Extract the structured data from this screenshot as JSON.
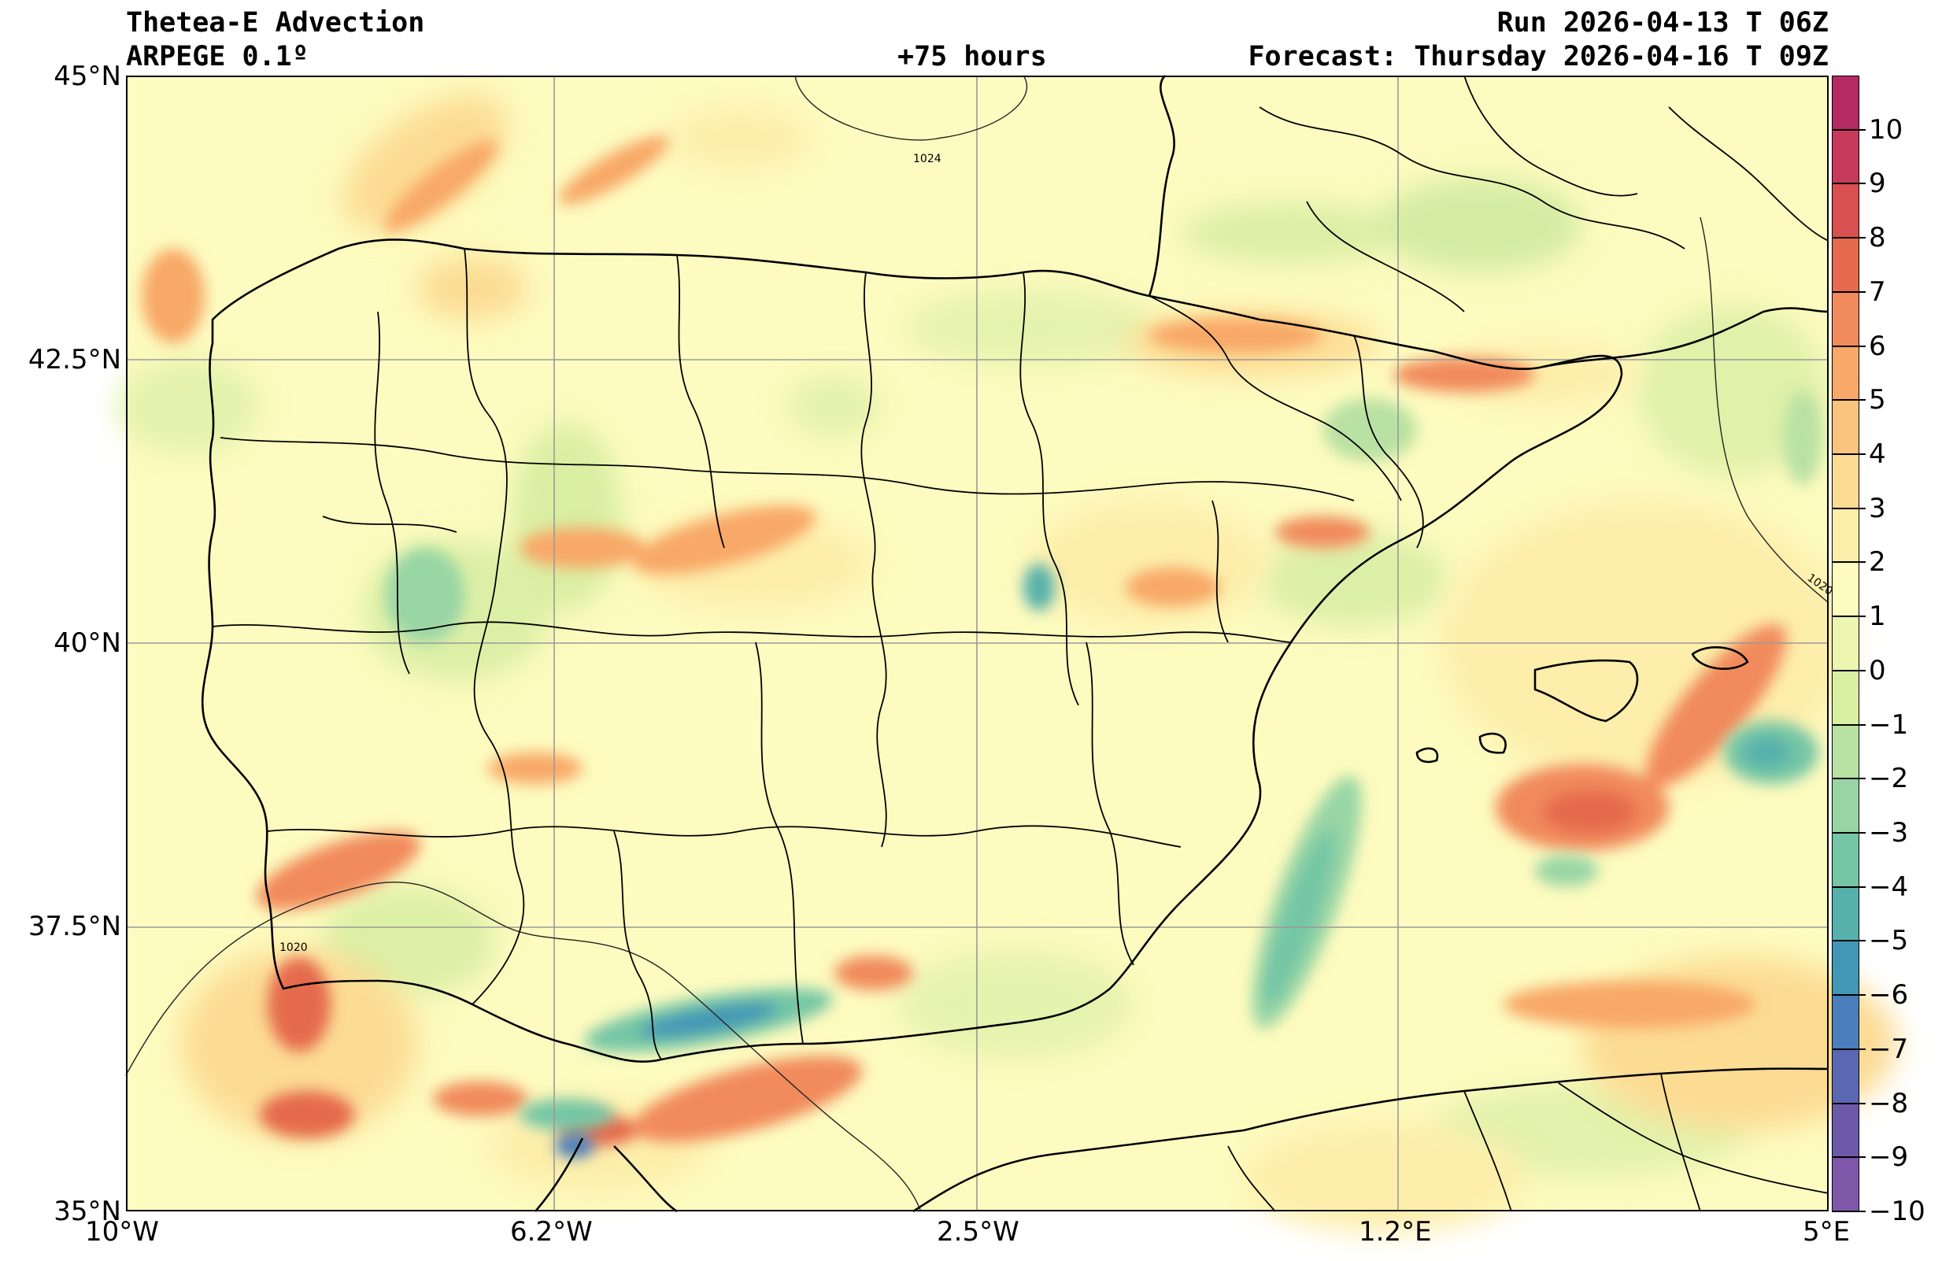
{
  "header": {
    "title": "Thetea-E Advection",
    "model": "ARPEGE 0.1º",
    "lead_time": "+75 hours",
    "run": "Run 2026-04-13 T 06Z",
    "forecast": "Forecast: Thursday 2026-04-16 T 09Z"
  },
  "map": {
    "region": "Iberian Peninsula",
    "extent": {
      "lon_min": -10,
      "lon_max": 5,
      "lat_min": 35,
      "lat_max": 45
    },
    "lat_labels": [
      "45°N",
      "42.5°N",
      "40°N",
      "37.5°N",
      "35°N"
    ],
    "lon_labels": [
      "10°W",
      "6.2°W",
      "2.5°W",
      "1.2°E",
      "5°E"
    ],
    "isobar_labels": [
      "1024",
      "1020",
      "1020"
    ],
    "background_color": "#fdfbbf",
    "gridline_color": "#9a9a9a"
  },
  "colorbar": {
    "tick_labels": [
      "10",
      "9",
      "8",
      "7",
      "6",
      "5",
      "4",
      "3",
      "2",
      "1",
      "0",
      "−1",
      "−2",
      "−3",
      "−4",
      "−5",
      "−6",
      "−7",
      "−8",
      "−9",
      "−10"
    ],
    "colors": [
      "#b42a63",
      "#c83a5c",
      "#d8504f",
      "#e56a4e",
      "#f18a5c",
      "#f8a868",
      "#fbc47e",
      "#fcdb93",
      "#fdeeab",
      "#fdfbbf",
      "#edf6b0",
      "#d9efa2",
      "#b9e1a3",
      "#98d5a4",
      "#74c6a5",
      "#56b1ac",
      "#4397b6",
      "#4a7ebd",
      "#5a68b4",
      "#6c5aa8",
      "#7e57a8"
    ]
  }
}
